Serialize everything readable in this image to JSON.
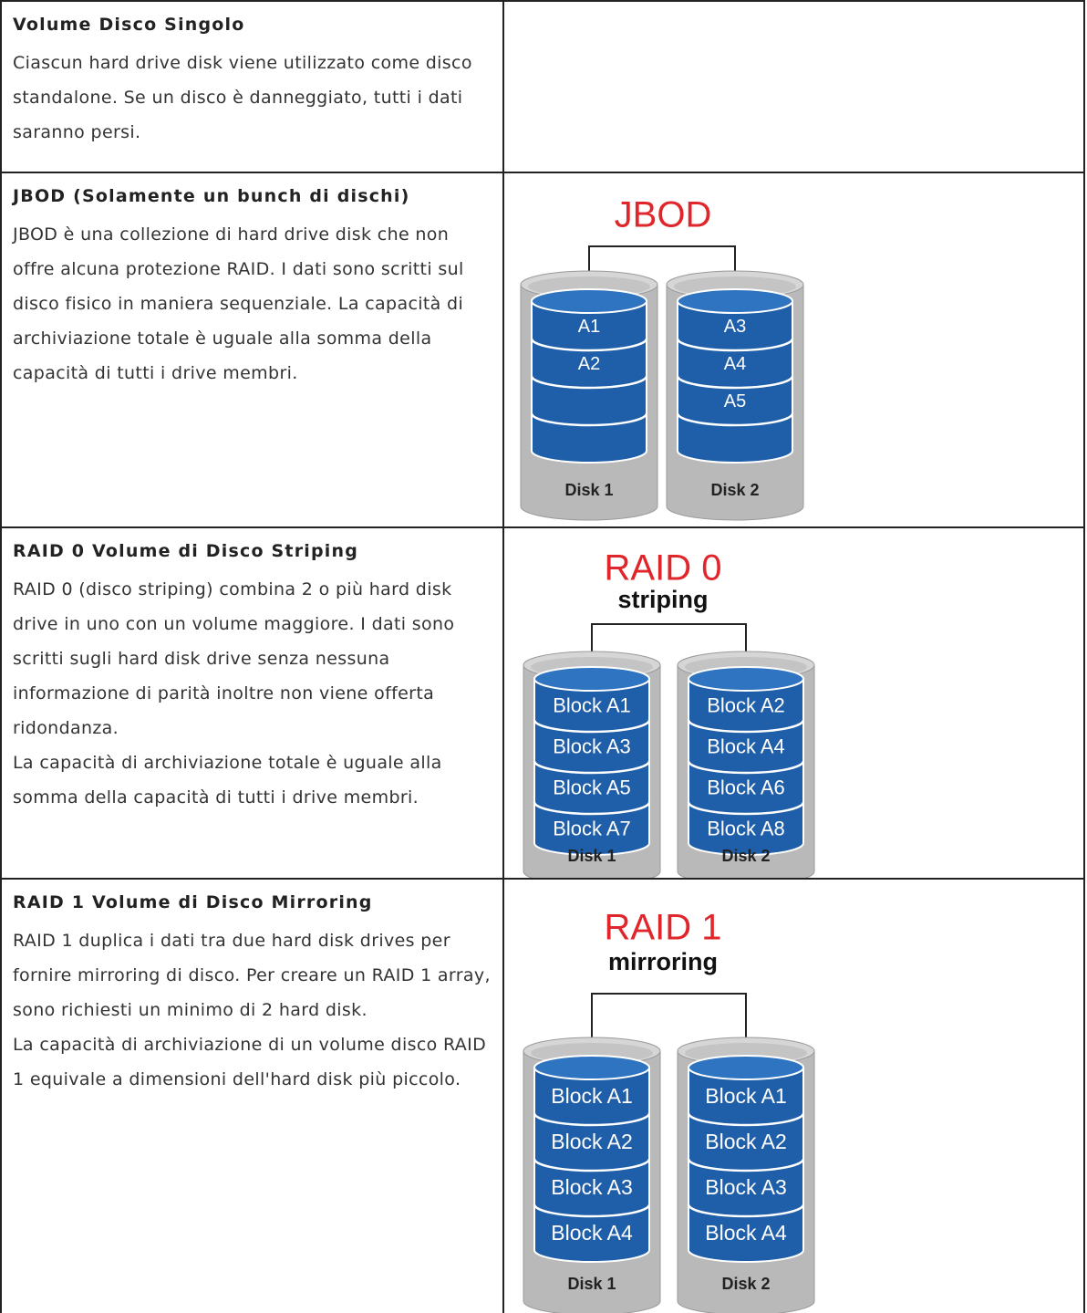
{
  "rows": [
    {
      "title": "Volume Disco Singolo",
      "paragraphs": [
        "Ciascun hard drive disk viene utilizzato come disco standalone. Se un disco è danneggiato, tutti i dati saranno persi."
      ]
    },
    {
      "title": "JBOD (Solamente un bunch di dischi)",
      "paragraphs": [
        "JBOD è una collezione di hard drive disk che non offre alcuna protezione RAID. I dati sono scritti sul disco fisico in maniera sequenziale. La capacità di archiviazione totale è uguale alla somma della capacità di tutti i drive membri."
      ],
      "diagram": {
        "title": "JBOD",
        "disks": [
          {
            "label": "Disk 1",
            "blocks": [
              "A1",
              "A2"
            ]
          },
          {
            "label": "Disk 2",
            "blocks": [
              "A3",
              "A4",
              "A5"
            ]
          }
        ]
      }
    },
    {
      "title": "RAID 0 Volume di Disco Striping",
      "paragraphs": [
        "RAID 0 (disco striping) combina 2 o più hard disk drive in uno con un volume maggiore. I dati sono scritti sugli hard disk drive senza nessuna informazione di parità inoltre non viene offerta ridondanza.",
        "La capacità di archiviazione totale è uguale alla somma della capacità di tutti i drive membri."
      ],
      "diagram": {
        "title": "RAID 0",
        "subtitle": "striping",
        "disks": [
          {
            "label": "Disk 1",
            "blocks": [
              "Block A1",
              "Block A3",
              "Block A5",
              "Block A7"
            ]
          },
          {
            "label": "Disk 2",
            "blocks": [
              "Block A2",
              "Block A4",
              "Block A6",
              "Block A8"
            ]
          }
        ]
      }
    },
    {
      "title": "RAID 1 Volume di Disco Mirroring",
      "paragraphs": [
        "RAID 1 duplica i dati tra due hard disk drives per fornire mirroring di disco. Per creare un RAID 1 array, sono richiesti un minimo di 2 hard disk.",
        "La capacità di archiviazione di un volume disco RAID 1 equivale a dimensioni dell'hard disk più piccolo."
      ],
      "diagram": {
        "title": "RAID 1",
        "subtitle": "mirroring",
        "disks": [
          {
            "label": "Disk 1",
            "blocks": [
              "Block A1",
              "Block A2",
              "Block A3",
              "Block A4"
            ]
          },
          {
            "label": "Disk 2",
            "blocks": [
              "Block A1",
              "Block A2",
              "Block A3",
              "Block A4"
            ]
          }
        ]
      }
    }
  ]
}
